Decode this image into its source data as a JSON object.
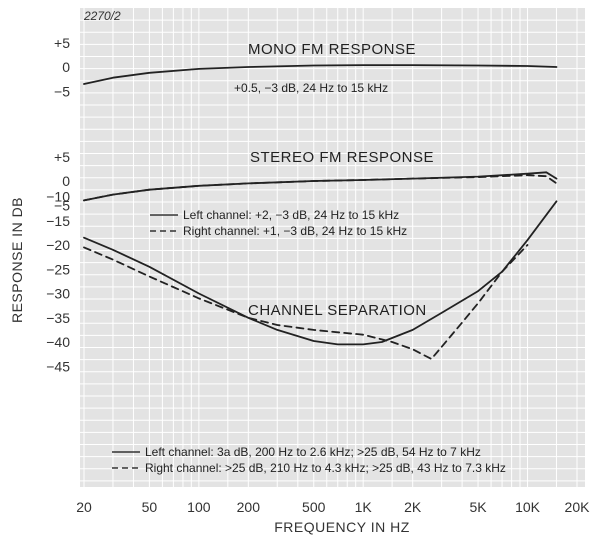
{
  "figure_id": "2270/2",
  "chart_data": [
    {
      "type": "line",
      "title": "MONO FM RESPONSE",
      "annotation": "+0.5, −3 dB, 24 Hz to 15 kHz",
      "yticks": [
        "+5",
        "0",
        "−5"
      ],
      "ylim": [
        -5,
        5
      ],
      "series": [
        {
          "x": [
            20,
            30,
            50,
            100,
            200,
            500,
            1000,
            2000,
            5000,
            10000,
            15000
          ],
          "y": [
            -3.5,
            -2.2,
            -1.2,
            -0.4,
            0,
            0.3,
            0.4,
            0.4,
            0.3,
            0.2,
            0
          ]
        }
      ]
    },
    {
      "type": "line",
      "title": "STEREO FM RESPONSE",
      "yticks": [
        "+5",
        "0",
        "−5"
      ],
      "series": [
        {
          "name": "Left channel: +2, −3 dB, 24 Hz to 15 kHz",
          "dash": "solid",
          "x": [
            20,
            30,
            50,
            100,
            200,
            500,
            1000,
            2000,
            5000,
            10000,
            13000,
            15000
          ],
          "y": [
            -4,
            -2.8,
            -1.8,
            -1,
            -0.5,
            0,
            0.2,
            0.5,
            0.9,
            1.5,
            1.8,
            0.5
          ]
        },
        {
          "name": "Right channel: +1, −3 dB, 24 Hz to 15 kHz",
          "dash": "dashed",
          "x": [
            20,
            30,
            50,
            100,
            200,
            500,
            1000,
            2000,
            5000,
            10000,
            13000,
            15000
          ],
          "y": [
            -4,
            -2.8,
            -1.8,
            -1,
            -0.5,
            0,
            0.2,
            0.5,
            0.8,
            1.2,
            1.0,
            -0.5
          ]
        }
      ]
    },
    {
      "type": "line",
      "title": "CHANNEL SEPARATION",
      "xlabel": "FREQUENCY IN HZ",
      "ylabel": "RESPONSE IN DB",
      "xscale": "log",
      "xticks": [
        "20",
        "50",
        "100",
        "200",
        "500",
        "1K",
        "2K",
        "5K",
        "10K",
        "20K"
      ],
      "yticks": [
        "−10",
        "−15",
        "−20",
        "−25",
        "−30",
        "−35",
        "−40",
        "−45"
      ],
      "series": [
        {
          "name": "Left channel: 3a dB, 200 Hz to 2.6 kHz; >25 dB, 54 Hz to 7 kHz",
          "dash": "solid",
          "x": [
            20,
            30,
            50,
            100,
            200,
            300,
            500,
            700,
            1000,
            1300,
            2000,
            3000,
            5000,
            7000,
            10000,
            15000
          ],
          "y": [
            -18.5,
            -21,
            -24.5,
            -30,
            -35,
            -37.5,
            -39.8,
            -40.5,
            -40.5,
            -40,
            -37.5,
            -34,
            -29.5,
            -25.5,
            -19,
            -11
          ]
        },
        {
          "name": "Right channel: >25 dB, 210 Hz to 4.3 kHz; >25 dB, 43 Hz to 7.3 kHz",
          "dash": "dashed",
          "x": [
            20,
            30,
            50,
            100,
            200,
            300,
            500,
            700,
            1000,
            1500,
            2000,
            2600,
            3000,
            4000,
            5000,
            7000,
            10000
          ],
          "y": [
            -20.5,
            -23,
            -26.5,
            -31,
            -35,
            -36.5,
            -37.5,
            -38,
            -38.5,
            -40,
            -41.5,
            -43.5,
            -41,
            -36,
            -32,
            -25.5,
            -20
          ]
        }
      ]
    }
  ]
}
